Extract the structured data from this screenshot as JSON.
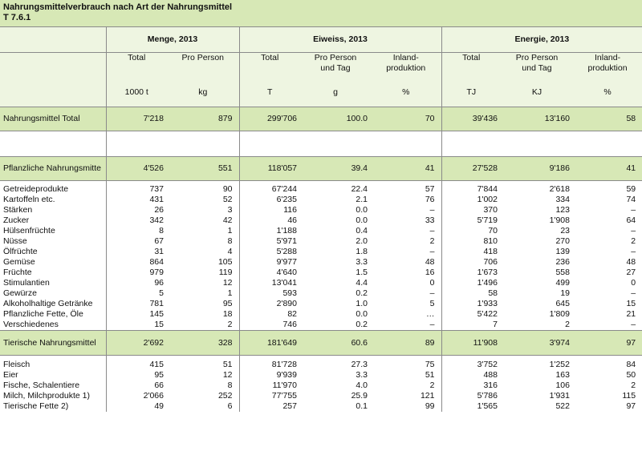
{
  "title": "Nahrungsmittelverbrauch nach Art der Nahrungsmittel",
  "code": "T 7.6.1",
  "groups": [
    "Menge, 2013",
    "Eiweiss, 2013",
    "Energie, 2013"
  ],
  "subheaders": [
    "Total",
    "Pro Person",
    "Total",
    "Pro Person und Tag",
    "Inland-produktion",
    "Total",
    "Pro Person und Tag",
    "Inland-produktion"
  ],
  "units": [
    "1000 t",
    "kg",
    "T",
    "g",
    "%",
    "TJ",
    "KJ",
    "%"
  ],
  "rows": [
    {
      "label": "Nahrungsmittel Total",
      "values": [
        "7'218",
        "879",
        "299'706",
        "100.0",
        "70",
        "39'436",
        "13'160",
        "58"
      ]
    },
    {
      "label": "Pflanzliche Nahrungsmitte",
      "values": [
        "4'526",
        "551",
        "118'057",
        "39.4",
        "41",
        "27'528",
        "9'186",
        "41"
      ]
    },
    {
      "label": "Getreideprodukte",
      "values": [
        "737",
        "90",
        "67'244",
        "22.4",
        "57",
        "7'844",
        "2'618",
        "59"
      ]
    },
    {
      "label": "Kartoffeln etc.",
      "values": [
        "431",
        "52",
        "6'235",
        "2.1",
        "76",
        "1'002",
        "334",
        "74"
      ]
    },
    {
      "label": "Stärken",
      "values": [
        "26",
        "3",
        "116",
        "0.0",
        "–",
        "370",
        "123",
        "–"
      ]
    },
    {
      "label": "Zucker",
      "values": [
        "342",
        "42",
        "46",
        "0.0",
        "33",
        "5'719",
        "1'908",
        "64"
      ]
    },
    {
      "label": "Hülsenfrüchte",
      "values": [
        "8",
        "1",
        "1'188",
        "0.4",
        "–",
        "70",
        "23",
        "–"
      ]
    },
    {
      "label": "Nüsse",
      "values": [
        "67",
        "8",
        "5'971",
        "2.0",
        "2",
        "810",
        "270",
        "2"
      ]
    },
    {
      "label": "Ölfrüchte",
      "values": [
        "31",
        "4",
        "5'288",
        "1.8",
        "–",
        "418",
        "139",
        "–"
      ]
    },
    {
      "label": "Gemüse",
      "values": [
        "864",
        "105",
        "9'977",
        "3.3",
        "48",
        "706",
        "236",
        "48"
      ]
    },
    {
      "label": "Früchte",
      "values": [
        "979",
        "119",
        "4'640",
        "1.5",
        "16",
        "1'673",
        "558",
        "27"
      ]
    },
    {
      "label": "Stimulantien",
      "values": [
        "96",
        "12",
        "13'041",
        "4.4",
        "0",
        "1'496",
        "499",
        "0"
      ]
    },
    {
      "label": "Gewürze",
      "values": [
        "5",
        "1",
        "593",
        "0.2",
        "–",
        "58",
        "19",
        "–"
      ]
    },
    {
      "label": "Alkoholhaltige Getränke",
      "values": [
        "781",
        "95",
        "2'890",
        "1.0",
        "5",
        "1'933",
        "645",
        "15"
      ]
    },
    {
      "label": "Pflanzliche Fette, Öle",
      "values": [
        "145",
        "18",
        "82",
        "0.0",
        "…",
        "5'422",
        "1'809",
        "21"
      ]
    },
    {
      "label": "Verschiedenes",
      "values": [
        "15",
        "2",
        "746",
        "0.2",
        "–",
        "7",
        "2",
        "–"
      ]
    },
    {
      "label": "Tierische Nahrungsmittel",
      "values": [
        "2'692",
        "328",
        "181'649",
        "60.6",
        "89",
        "11'908",
        "3'974",
        "97"
      ]
    },
    {
      "label": "Fleisch",
      "values": [
        "415",
        "51",
        "81'728",
        "27.3",
        "75",
        "3'752",
        "1'252",
        "84"
      ]
    },
    {
      "label": "Eier",
      "values": [
        "95",
        "12",
        "9'939",
        "3.3",
        "51",
        "488",
        "163",
        "50"
      ]
    },
    {
      "label": "Fische, Schalentiere",
      "values": [
        "66",
        "8",
        "11'970",
        "4.0",
        "2",
        "316",
        "106",
        "2"
      ]
    },
    {
      "label": "Milch, Milchprodukte 1)",
      "values": [
        "2'066",
        "252",
        "77'755",
        "25.9",
        "121",
        "5'786",
        "1'931",
        "115"
      ]
    },
    {
      "label": "Tierische Fette 2)",
      "values": [
        "49",
        "6",
        "257",
        "0.1",
        "99",
        "1'565",
        "522",
        "97"
      ]
    }
  ]
}
